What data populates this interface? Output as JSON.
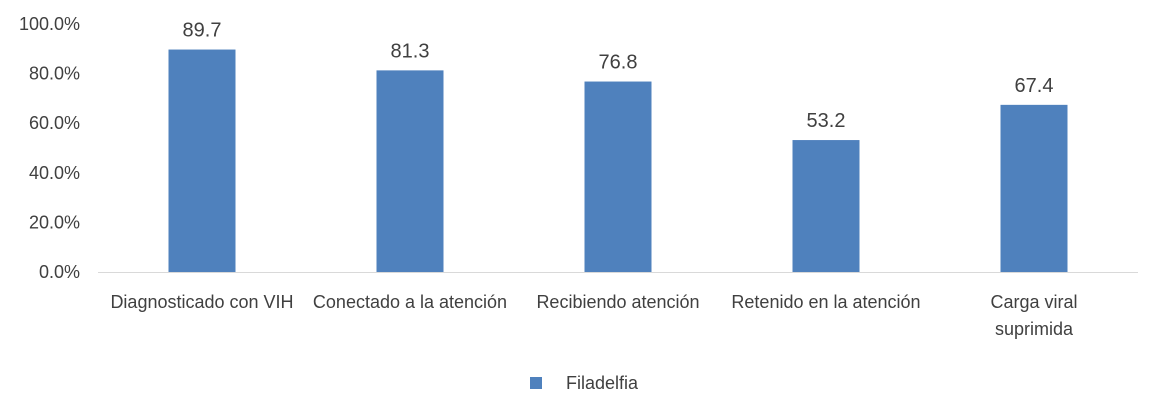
{
  "chart_data": {
    "type": "bar",
    "categories": [
      [
        "Diagnosticado con VIH"
      ],
      [
        "Conectado a la atención"
      ],
      [
        "Recibiendo atención"
      ],
      [
        "Retenido en la atención"
      ],
      [
        "Carga viral",
        "suprimida"
      ]
    ],
    "series": [
      {
        "name": "Filadelfia",
        "values": [
          89.7,
          81.3,
          76.8,
          53.2,
          67.4
        ],
        "value_labels": [
          "89.7",
          "81.3",
          "76.8",
          "53.2",
          "67.4"
        ],
        "color": "#4f81bd"
      }
    ],
    "y_ticks": [
      "0.0%",
      "20.0%",
      "40.0%",
      "60.0%",
      "80.0%",
      "100.0%"
    ],
    "ylim": [
      0,
      100
    ],
    "grid": false,
    "legend_position": "bottom",
    "axis_color": "#d9d9d9"
  }
}
